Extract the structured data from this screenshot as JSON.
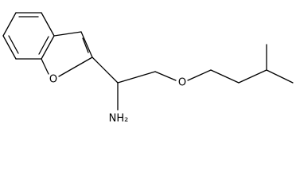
{
  "atoms": {
    "ring_oxygen": "O",
    "amine": "NH₂",
    "ether_oxygen": "O"
  }
}
